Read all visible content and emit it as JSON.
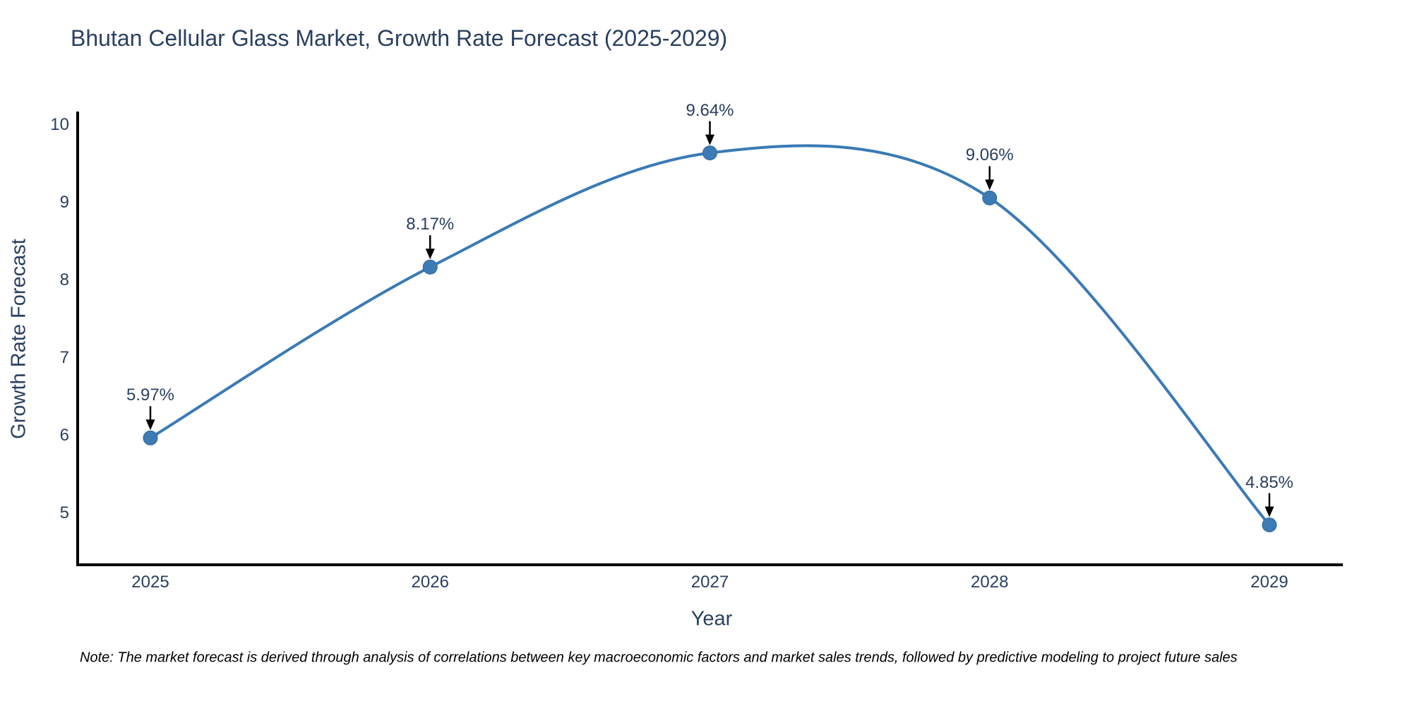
{
  "chart_data": {
    "type": "line",
    "title": "Bhutan Cellular Glass Market, Growth Rate Forecast (2025-2029)",
    "xlabel": "Year",
    "ylabel": "Growth Rate Forecast",
    "x": [
      2025,
      2026,
      2027,
      2028,
      2029
    ],
    "values": [
      5.97,
      8.17,
      9.64,
      9.06,
      4.85
    ],
    "point_labels": [
      "5.97%",
      "8.17%",
      "9.64%",
      "9.06%",
      "4.85%"
    ],
    "yticks": [
      10,
      9,
      8,
      7,
      6,
      5
    ],
    "ylim": [
      4.33,
      10.18
    ],
    "xlim": [
      2024.74,
      2029.26
    ],
    "line_shape": "spline",
    "grid": false,
    "legend": "none",
    "colors": {
      "line": "#3a7ab5",
      "marker": "#3d7bb4",
      "marker_edge": "#2e699f",
      "annotation_arrow": "#000000",
      "axis": "#000000",
      "text": "#2a3f5f",
      "note_text": "#000000"
    },
    "note": "Note: The market forecast is derived through analysis of correlations between key macroeconomic factors and market sales trends, followed by predictive modeling to project future sales"
  }
}
